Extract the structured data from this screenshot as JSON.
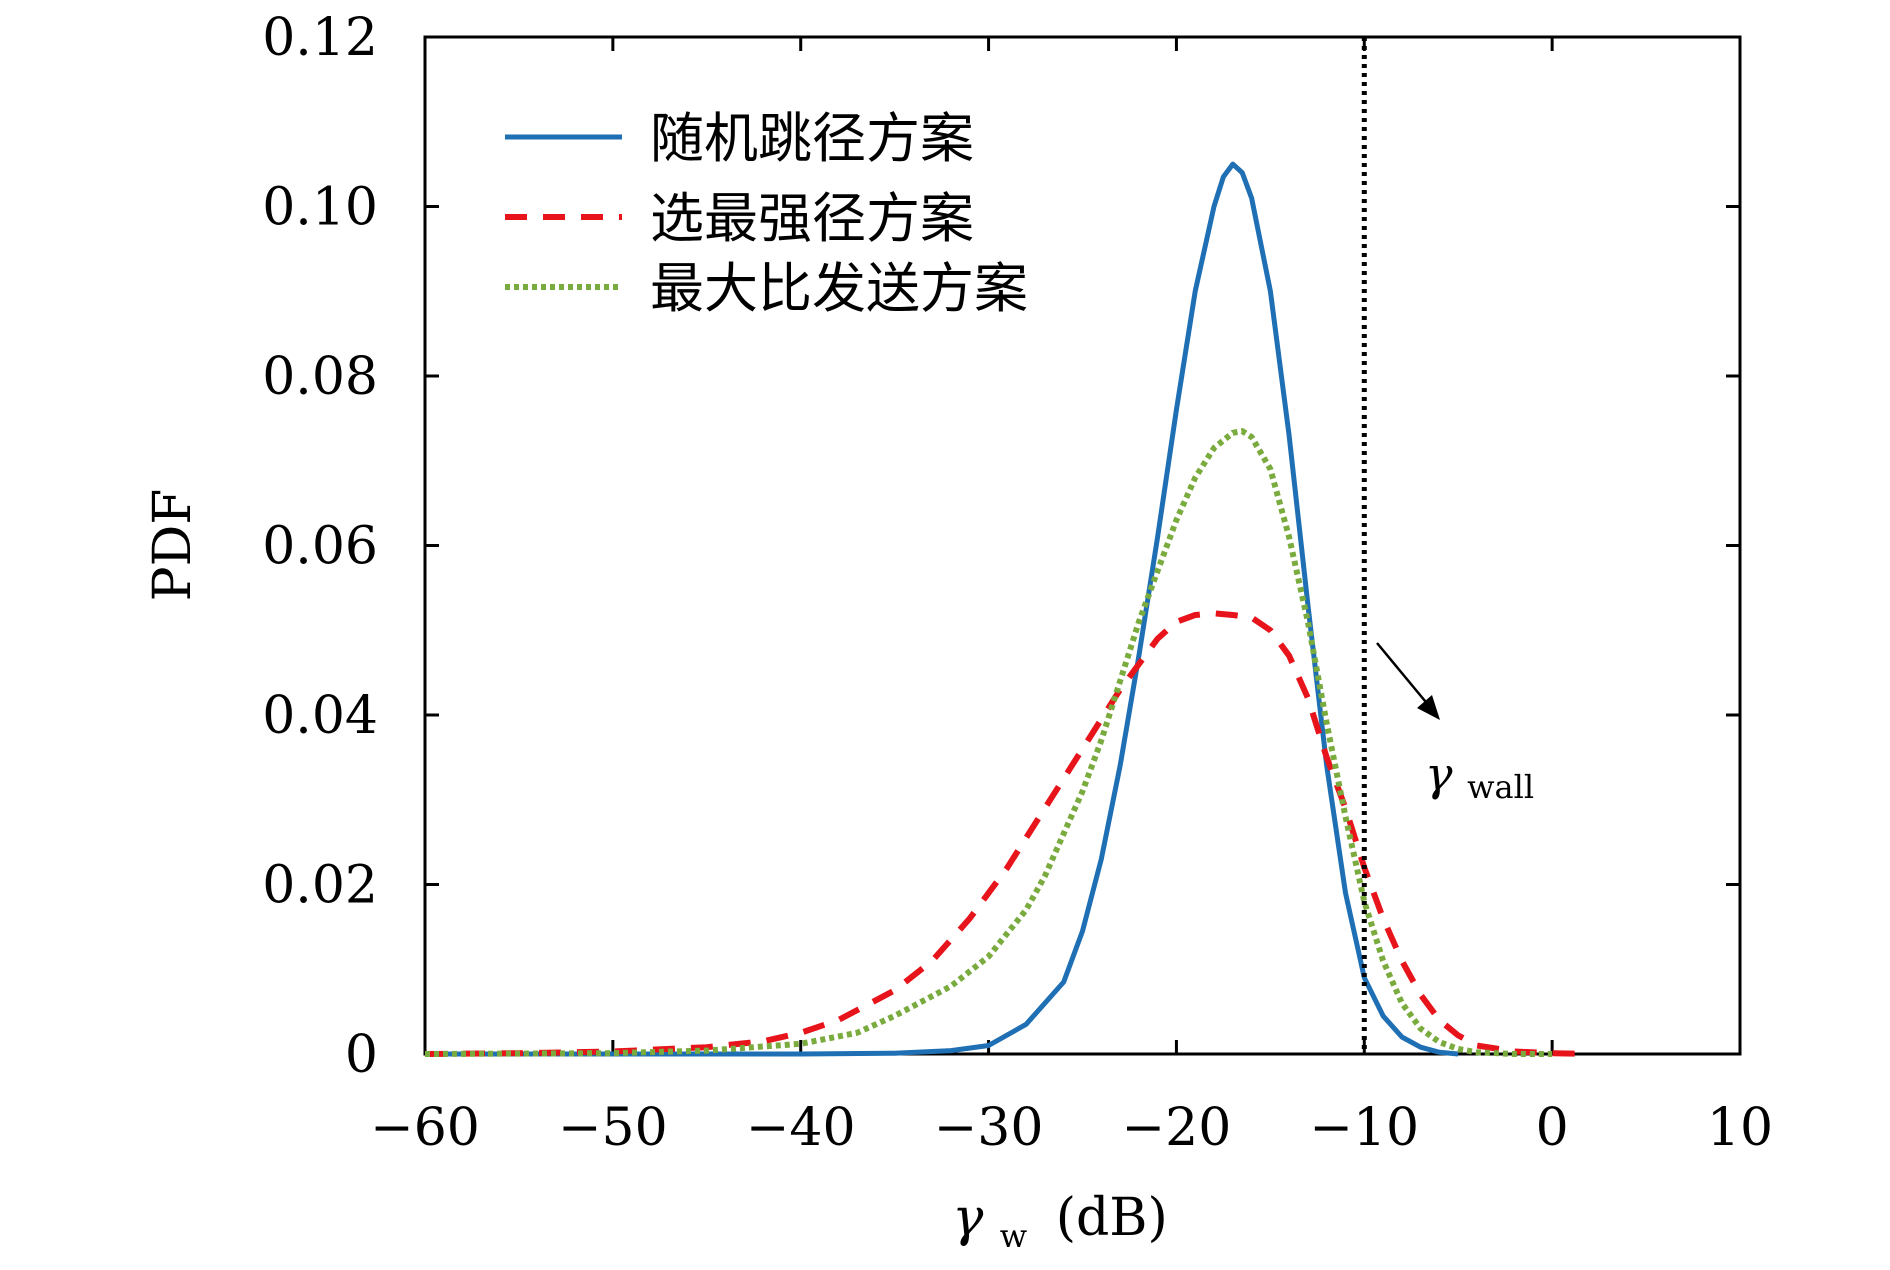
{
  "chart_data": {
    "type": "line",
    "title": "",
    "xlabel": {
      "symbol": "γ",
      "sub": "w",
      "unit": "(dB)"
    },
    "ylabel": "PDF",
    "xlim": [
      -60,
      10
    ],
    "ylim": [
      0,
      0.12
    ],
    "xticks": [
      -60,
      -50,
      -40,
      -30,
      -20,
      -10,
      0,
      10
    ],
    "xtick_labels": [
      "−60",
      "−50",
      "−40",
      "−30",
      "−20",
      "−10",
      "0",
      "10"
    ],
    "yticks": [
      0,
      0.02,
      0.04,
      0.06,
      0.08,
      0.1,
      0.12
    ],
    "ytick_labels": [
      "0",
      "0.02",
      "0.04",
      "0.06",
      "0.08",
      "0.10",
      "0.12"
    ],
    "grid": false,
    "legend_position": "top-left",
    "threshold": {
      "x": -10,
      "label_symbol": "γ",
      "label_sub": "wall",
      "style": "dotted",
      "color": "#000000"
    },
    "series": [
      {
        "name": "随机跳径方案",
        "color": "#1f6fb5",
        "style": "solid",
        "x": [
          -60,
          -40,
          -35,
          -32,
          -30,
          -28,
          -26,
          -25,
          -24,
          -23,
          -22,
          -21,
          -20,
          -19,
          -18,
          -17.5,
          -17,
          -16.5,
          -16,
          -15,
          -14,
          -13,
          -12,
          -11,
          -10,
          -9,
          -8,
          -7,
          -6,
          -5
        ],
        "y": [
          0,
          0,
          0.0001,
          0.0004,
          0.001,
          0.0035,
          0.0085,
          0.0145,
          0.023,
          0.034,
          0.047,
          0.061,
          0.076,
          0.09,
          0.1,
          0.1035,
          0.105,
          0.104,
          0.101,
          0.09,
          0.073,
          0.053,
          0.034,
          0.019,
          0.009,
          0.0045,
          0.002,
          0.0008,
          0.0002,
          0
        ]
      },
      {
        "name": "选最强径方案",
        "color": "#e8141b",
        "style": "dashed",
        "x": [
          -60,
          -55,
          -50,
          -45,
          -42,
          -40,
          -38,
          -35,
          -33,
          -31,
          -29,
          -27,
          -25,
          -23,
          -21,
          -20,
          -19,
          -18,
          -17,
          -16,
          -15,
          -14,
          -13,
          -12,
          -11,
          -10,
          -9,
          -8,
          -7,
          -6,
          -5,
          -4,
          -2,
          0,
          2
        ],
        "y": [
          0,
          0.0001,
          0.0003,
          0.0008,
          0.0015,
          0.0025,
          0.004,
          0.0075,
          0.011,
          0.016,
          0.022,
          0.029,
          0.036,
          0.043,
          0.049,
          0.051,
          0.0518,
          0.052,
          0.0518,
          0.0515,
          0.05,
          0.047,
          0.042,
          0.035,
          0.029,
          0.022,
          0.016,
          0.011,
          0.007,
          0.004,
          0.0022,
          0.001,
          0.0003,
          0.0001,
          0
        ]
      },
      {
        "name": "最大比发送方案",
        "color": "#7aab3e",
        "style": "dotted",
        "x": [
          -60,
          -50,
          -45,
          -40,
          -37,
          -35,
          -32,
          -30,
          -28,
          -27,
          -26,
          -25,
          -24,
          -23,
          -22,
          -21,
          -20,
          -19,
          -18,
          -17,
          -16.5,
          -16,
          -15,
          -14,
          -13,
          -12,
          -11,
          -10,
          -9,
          -8,
          -7,
          -6,
          -5,
          -4,
          -2,
          0
        ],
        "y": [
          0,
          0.0001,
          0.0004,
          0.0012,
          0.0025,
          0.0045,
          0.008,
          0.0115,
          0.017,
          0.021,
          0.026,
          0.031,
          0.037,
          0.044,
          0.051,
          0.057,
          0.063,
          0.068,
          0.0715,
          0.0733,
          0.0735,
          0.0728,
          0.069,
          0.061,
          0.051,
          0.039,
          0.028,
          0.018,
          0.011,
          0.006,
          0.003,
          0.0014,
          0.0006,
          0.0002,
          0,
          0
        ]
      }
    ]
  }
}
